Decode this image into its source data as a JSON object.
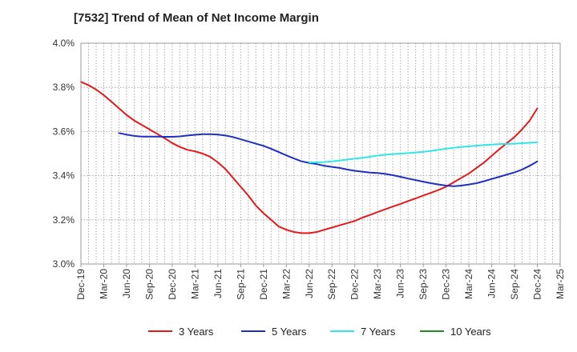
{
  "chart_data": {
    "type": "line",
    "title": "[7532]  Trend of Mean of Net Income Margin",
    "xlabel": "",
    "ylabel": "",
    "ylim": [
      3.0,
      4.0
    ],
    "y_ticks": [
      "3.0%",
      "3.2%",
      "3.4%",
      "3.6%",
      "3.8%",
      "4.0%"
    ],
    "x_ticks": [
      "Dec-19",
      "Mar-20",
      "Jun-20",
      "Sep-20",
      "Dec-20",
      "Mar-21",
      "Jun-21",
      "Sep-21",
      "Dec-21",
      "Mar-22",
      "Jun-22",
      "Sep-22",
      "Dec-22",
      "Mar-23",
      "Jun-23",
      "Sep-23",
      "Dec-23",
      "Mar-24",
      "Jun-24",
      "Sep-24",
      "Dec-24",
      "Mar-25"
    ],
    "grid": true,
    "legend_position": "bottom",
    "series": [
      {
        "name": "3 Years",
        "color": "#e31a1c",
        "points": [
          [
            "Dec-19",
            3.825
          ],
          [
            "Jan-20",
            3.81
          ],
          [
            "Feb-20",
            3.79
          ],
          [
            "Mar-20",
            3.765
          ],
          [
            "Apr-20",
            3.735
          ],
          [
            "May-20",
            3.705
          ],
          [
            "Jun-20",
            3.675
          ],
          [
            "Jul-20",
            3.65
          ],
          [
            "Aug-20",
            3.63
          ],
          [
            "Sep-20",
            3.61
          ],
          [
            "Oct-20",
            3.59
          ],
          [
            "Nov-20",
            3.57
          ],
          [
            "Dec-20",
            3.548
          ],
          [
            "Jan-21",
            3.53
          ],
          [
            "Feb-21",
            3.517
          ],
          [
            "Mar-21",
            3.51
          ],
          [
            "Apr-21",
            3.5
          ],
          [
            "May-21",
            3.485
          ],
          [
            "Jun-21",
            3.46
          ],
          [
            "Jul-21",
            3.43
          ],
          [
            "Aug-21",
            3.39
          ],
          [
            "Sep-21",
            3.35
          ],
          [
            "Oct-21",
            3.31
          ],
          [
            "Nov-21",
            3.265
          ],
          [
            "Dec-21",
            3.23
          ],
          [
            "Jan-22",
            3.2
          ],
          [
            "Feb-22",
            3.17
          ],
          [
            "Mar-22",
            3.155
          ],
          [
            "Apr-22",
            3.145
          ],
          [
            "May-22",
            3.14
          ],
          [
            "Jun-22",
            3.14
          ],
          [
            "Jul-22",
            3.145
          ],
          [
            "Aug-22",
            3.155
          ],
          [
            "Sep-22",
            3.165
          ],
          [
            "Oct-22",
            3.175
          ],
          [
            "Nov-22",
            3.185
          ],
          [
            "Dec-22",
            3.195
          ],
          [
            "Jan-23",
            3.21
          ],
          [
            "Feb-23",
            3.222
          ],
          [
            "Mar-23",
            3.235
          ],
          [
            "Apr-23",
            3.248
          ],
          [
            "May-23",
            3.26
          ],
          [
            "Jun-23",
            3.272
          ],
          [
            "Jul-23",
            3.285
          ],
          [
            "Aug-23",
            3.297
          ],
          [
            "Sep-23",
            3.31
          ],
          [
            "Oct-23",
            3.322
          ],
          [
            "Nov-23",
            3.335
          ],
          [
            "Dec-23",
            3.35
          ],
          [
            "Jan-24",
            3.37
          ],
          [
            "Feb-24",
            3.39
          ],
          [
            "Mar-24",
            3.41
          ],
          [
            "Apr-24",
            3.435
          ],
          [
            "May-24",
            3.46
          ],
          [
            "Jun-24",
            3.49
          ],
          [
            "Jul-24",
            3.52
          ],
          [
            "Aug-24",
            3.548
          ],
          [
            "Sep-24",
            3.575
          ],
          [
            "Oct-24",
            3.61
          ],
          [
            "Nov-24",
            3.65
          ],
          [
            "Dec-24",
            3.705
          ]
        ]
      },
      {
        "name": "5 Years",
        "color": "#1f2fbf",
        "points": [
          [
            "May-20",
            3.593
          ],
          [
            "Jun-20",
            3.586
          ],
          [
            "Jul-20",
            3.58
          ],
          [
            "Aug-20",
            3.577
          ],
          [
            "Sep-20",
            3.577
          ],
          [
            "Oct-20",
            3.577
          ],
          [
            "Nov-20",
            3.576
          ],
          [
            "Dec-20",
            3.576
          ],
          [
            "Jan-21",
            3.578
          ],
          [
            "Feb-21",
            3.582
          ],
          [
            "Mar-21",
            3.585
          ],
          [
            "Apr-21",
            3.588
          ],
          [
            "May-21",
            3.588
          ],
          [
            "Jun-21",
            3.586
          ],
          [
            "Jul-21",
            3.582
          ],
          [
            "Aug-21",
            3.575
          ],
          [
            "Sep-21",
            3.565
          ],
          [
            "Oct-21",
            3.555
          ],
          [
            "Nov-21",
            3.545
          ],
          [
            "Dec-21",
            3.535
          ],
          [
            "Jan-22",
            3.522
          ],
          [
            "Feb-22",
            3.507
          ],
          [
            "Mar-22",
            3.492
          ],
          [
            "Apr-22",
            3.478
          ],
          [
            "May-22",
            3.465
          ],
          [
            "Jun-22",
            3.458
          ],
          [
            "Jul-22",
            3.452
          ],
          [
            "Aug-22",
            3.445
          ],
          [
            "Sep-22",
            3.44
          ],
          [
            "Oct-22",
            3.435
          ],
          [
            "Nov-22",
            3.428
          ],
          [
            "Dec-22",
            3.422
          ],
          [
            "Jan-23",
            3.418
          ],
          [
            "Feb-23",
            3.414
          ],
          [
            "Mar-23",
            3.412
          ],
          [
            "Apr-23",
            3.408
          ],
          [
            "May-23",
            3.402
          ],
          [
            "Jun-23",
            3.395
          ],
          [
            "Jul-23",
            3.387
          ],
          [
            "Aug-23",
            3.38
          ],
          [
            "Sep-23",
            3.373
          ],
          [
            "Oct-23",
            3.366
          ],
          [
            "Nov-23",
            3.36
          ],
          [
            "Dec-23",
            3.355
          ],
          [
            "Jan-24",
            3.352
          ],
          [
            "Feb-24",
            3.355
          ],
          [
            "Mar-24",
            3.36
          ],
          [
            "Apr-24",
            3.366
          ],
          [
            "May-24",
            3.375
          ],
          [
            "Jun-24",
            3.385
          ],
          [
            "Jul-24",
            3.395
          ],
          [
            "Aug-24",
            3.405
          ],
          [
            "Sep-24",
            3.415
          ],
          [
            "Oct-24",
            3.428
          ],
          [
            "Nov-24",
            3.445
          ],
          [
            "Dec-24",
            3.465
          ]
        ]
      },
      {
        "name": "7 Years",
        "color": "#33e5e5",
        "points": [
          [
            "Jun-22",
            3.46
          ],
          [
            "Jul-22",
            3.46
          ],
          [
            "Aug-22",
            3.462
          ],
          [
            "Sep-22",
            3.465
          ],
          [
            "Oct-22",
            3.469
          ],
          [
            "Nov-22",
            3.473
          ],
          [
            "Dec-22",
            3.477
          ],
          [
            "Jan-23",
            3.481
          ],
          [
            "Feb-23",
            3.486
          ],
          [
            "Mar-23",
            3.491
          ],
          [
            "Apr-23",
            3.495
          ],
          [
            "May-23",
            3.498
          ],
          [
            "Jun-23",
            3.5
          ],
          [
            "Jul-23",
            3.502
          ],
          [
            "Aug-23",
            3.505
          ],
          [
            "Sep-23",
            3.508
          ],
          [
            "Oct-23",
            3.512
          ],
          [
            "Nov-23",
            3.517
          ],
          [
            "Dec-23",
            3.522
          ],
          [
            "Jan-24",
            3.526
          ],
          [
            "Feb-24",
            3.53
          ],
          [
            "Mar-24",
            3.533
          ],
          [
            "Apr-24",
            3.536
          ],
          [
            "May-24",
            3.539
          ],
          [
            "Jun-24",
            3.541
          ],
          [
            "Jul-24",
            3.543
          ],
          [
            "Aug-24",
            3.544
          ],
          [
            "Sep-24",
            3.545
          ],
          [
            "Oct-24",
            3.547
          ],
          [
            "Nov-24",
            3.549
          ],
          [
            "Dec-24",
            3.551
          ]
        ]
      },
      {
        "name": "10 Years",
        "color": "#228b22",
        "points": []
      }
    ]
  }
}
